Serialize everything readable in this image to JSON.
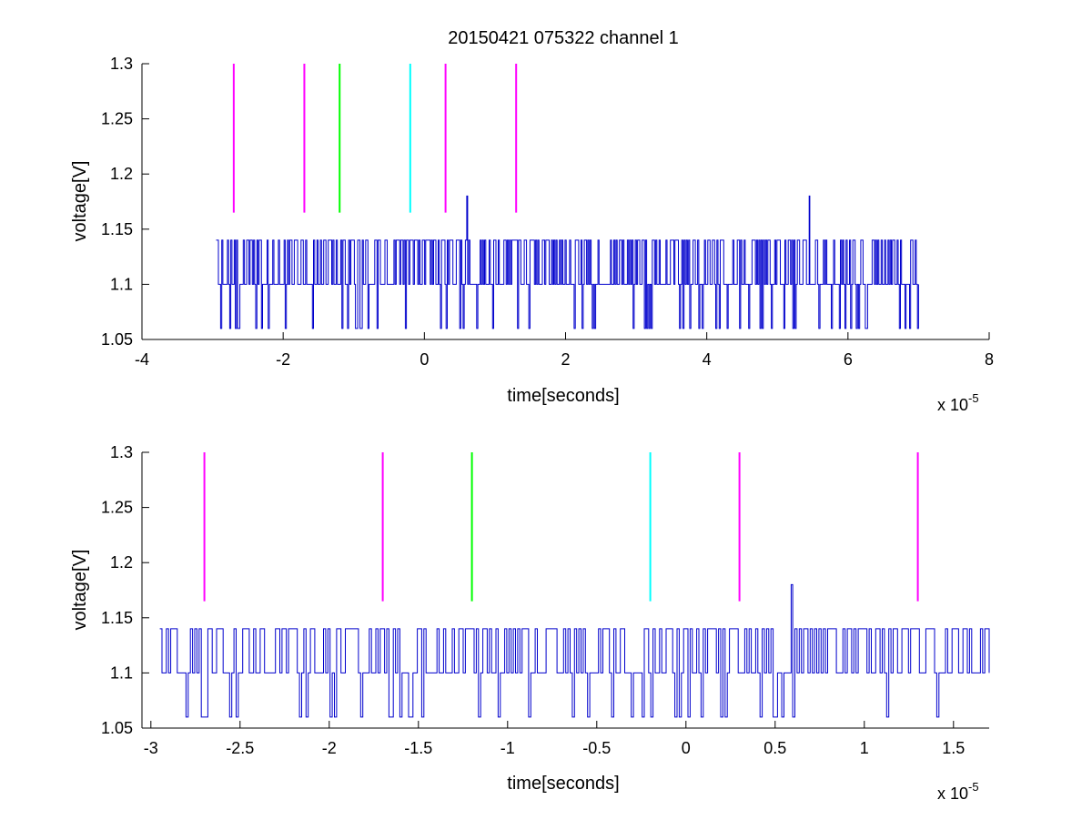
{
  "figure": {
    "title": "20150421 075322 channel 1"
  },
  "chart_data": [
    {
      "type": "line",
      "title": "20150421 075322 channel 1",
      "xlabel": "time[seconds]",
      "ylabel": "voltage[V]",
      "x_exponent_label": "x 10",
      "x_exponent": "-5",
      "xlim": [
        -4,
        8
      ],
      "ylim": [
        1.05,
        1.3
      ],
      "xticks": [
        "-4",
        "-2",
        "0",
        "2",
        "4",
        "6",
        "8"
      ],
      "yticks": [
        "1.05",
        "1.1",
        "1.15",
        "1.2",
        "1.25",
        "1.3"
      ],
      "signal": {
        "color": "#0000cc",
        "x_start": -2.95,
        "x_end": 7.0,
        "baseline": 1.1,
        "levels": [
          1.06,
          1.1,
          1.14
        ],
        "spikes": [
          {
            "x": 0.6,
            "y": 1.18
          },
          {
            "x": 5.45,
            "y": 1.18
          }
        ]
      },
      "markers": [
        {
          "x": -2.7,
          "y_range": [
            1.165,
            1.3
          ],
          "color": "#ff00ff"
        },
        {
          "x": -1.7,
          "y_range": [
            1.165,
            1.3
          ],
          "color": "#ff00ff"
        },
        {
          "x": -1.2,
          "y_range": [
            1.165,
            1.3
          ],
          "color": "#00ff00"
        },
        {
          "x": -0.2,
          "y_range": [
            1.165,
            1.3
          ],
          "color": "#00ffff"
        },
        {
          "x": 0.3,
          "y_range": [
            1.165,
            1.3
          ],
          "color": "#ff00ff"
        },
        {
          "x": 1.3,
          "y_range": [
            1.165,
            1.3
          ],
          "color": "#ff00ff"
        }
      ],
      "grid": false
    },
    {
      "type": "line",
      "title": "",
      "xlabel": "time[seconds]",
      "ylabel": "voltage[V]",
      "x_exponent_label": "x 10",
      "x_exponent": "-5",
      "xlim": [
        -3.05,
        1.7
      ],
      "ylim": [
        1.05,
        1.3
      ],
      "xticks": [
        "-3",
        "-2.5",
        "-2",
        "-1.5",
        "-1",
        "-0.5",
        "0",
        "0.5",
        "1",
        "1.5"
      ],
      "yticks": [
        "1.05",
        "1.1",
        "1.15",
        "1.2",
        "1.25",
        "1.3"
      ],
      "signal": {
        "color": "#0000cc",
        "x_start": -2.95,
        "x_end": 1.7,
        "baseline": 1.1,
        "levels": [
          1.06,
          1.1,
          1.14
        ],
        "spikes": [
          {
            "x": 0.59,
            "y": 1.18
          }
        ]
      },
      "markers": [
        {
          "x": -2.7,
          "y_range": [
            1.165,
            1.3
          ],
          "color": "#ff00ff"
        },
        {
          "x": -1.7,
          "y_range": [
            1.165,
            1.3
          ],
          "color": "#ff00ff"
        },
        {
          "x": -1.2,
          "y_range": [
            1.165,
            1.3
          ],
          "color": "#00ff00"
        },
        {
          "x": -0.2,
          "y_range": [
            1.165,
            1.3
          ],
          "color": "#00ffff"
        },
        {
          "x": 0.3,
          "y_range": [
            1.165,
            1.3
          ],
          "color": "#ff00ff"
        },
        {
          "x": 1.3,
          "y_range": [
            1.165,
            1.3
          ],
          "color": "#ff00ff"
        }
      ],
      "grid": false
    }
  ]
}
